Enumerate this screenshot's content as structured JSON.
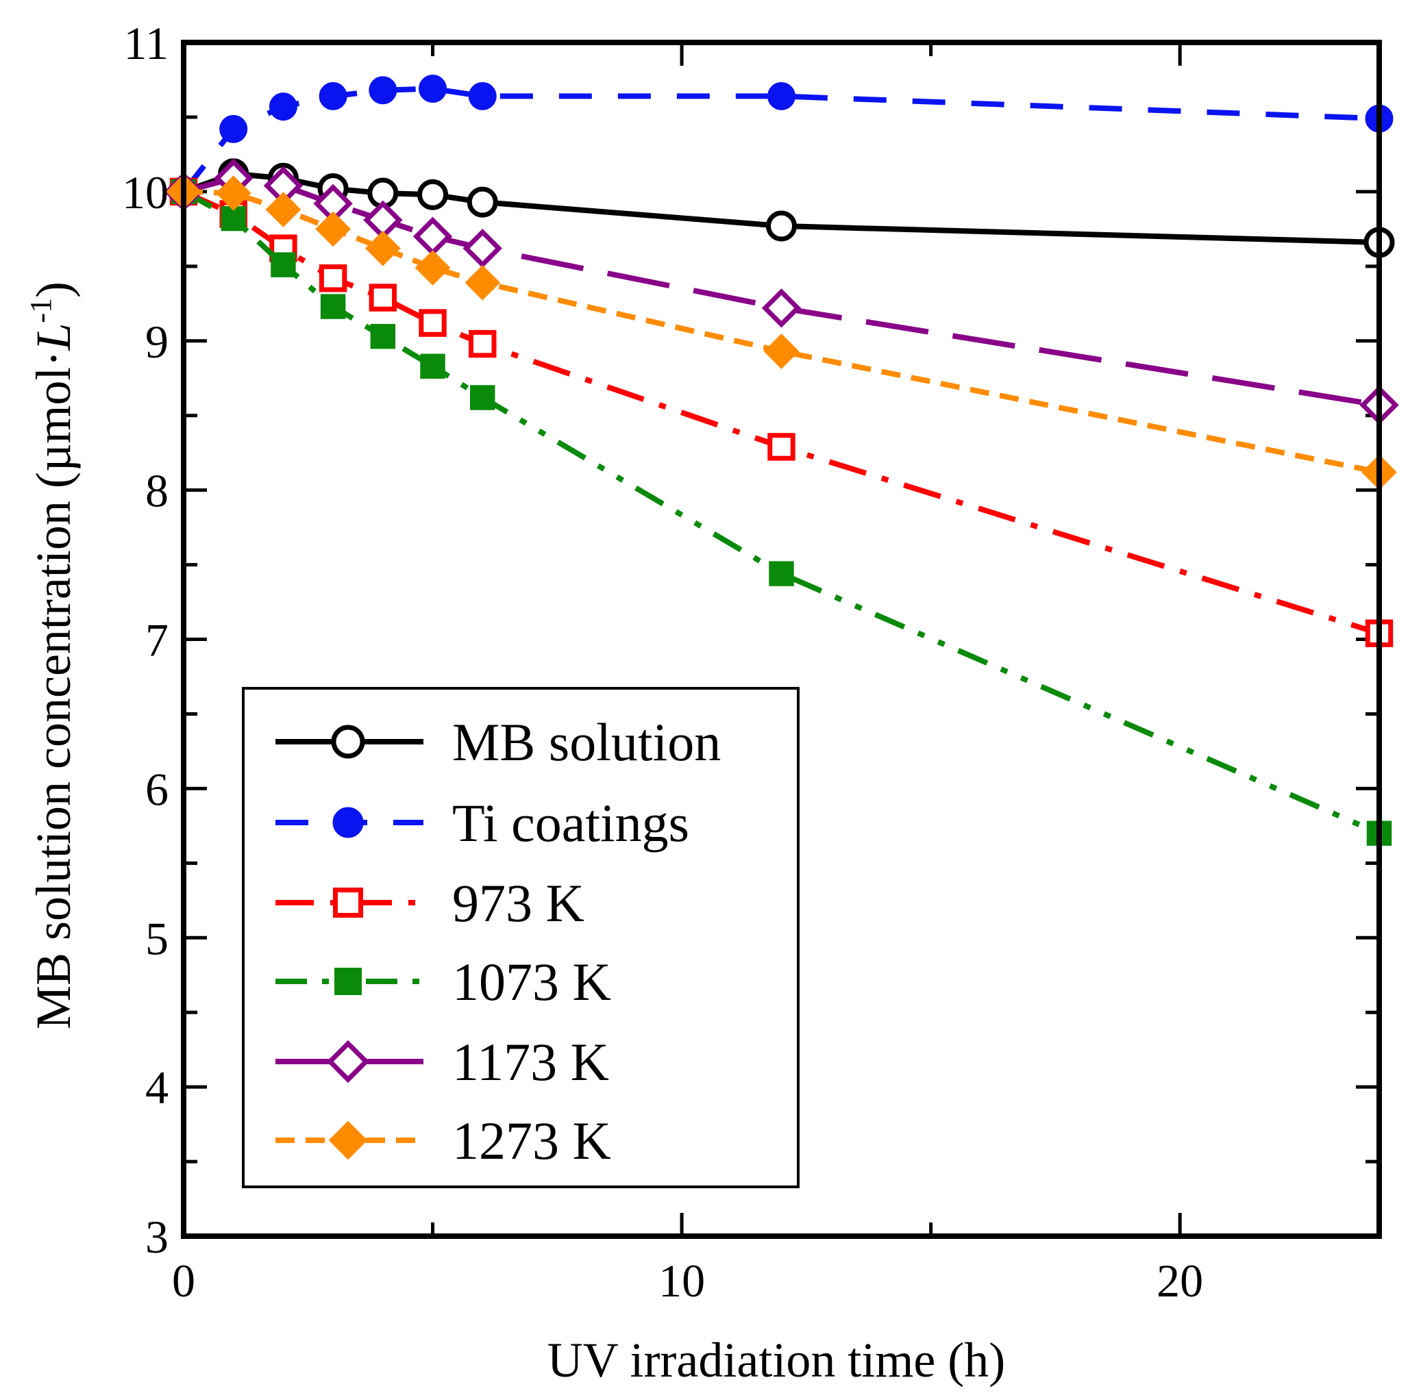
{
  "chart_data": {
    "type": "line",
    "title": "",
    "xlabel": "UV irradiation time (h)",
    "ylabel": "MB solution concentration (µmol·L⁻¹)",
    "ylabel_parts": {
      "prefix": "MB solution concentration (µmol·",
      "unit_letter": "L",
      "exponent": "-1",
      "suffix": ")"
    },
    "xlim": [
      0,
      24
    ],
    "ylim": [
      3,
      11
    ],
    "x_ticks": [
      "0",
      "10",
      "20"
    ],
    "y_ticks": [
      "3",
      "4",
      "5",
      "6",
      "7",
      "8",
      "9",
      "10",
      "11"
    ],
    "x": [
      0,
      1,
      2,
      3,
      4,
      5,
      6,
      12,
      24
    ],
    "legend_position": "lower-left",
    "series": [
      {
        "name": "MB solution",
        "color": "#000000",
        "dash": "solid",
        "marker": "circle",
        "filled": false,
        "values": [
          10.0,
          10.12,
          10.09,
          10.02,
          9.99,
          9.98,
          9.93,
          9.77,
          9.66
        ]
      },
      {
        "name": "Ti coatings",
        "color": "#0a14f0",
        "dash": "dash",
        "marker": "circle",
        "filled": true,
        "values": [
          10.0,
          10.42,
          10.57,
          10.64,
          10.68,
          10.69,
          10.64,
          10.64,
          10.49
        ]
      },
      {
        "name": " 973 K",
        "color": "#ff0000",
        "dash": "dashdot",
        "marker": "square",
        "filled": false,
        "values": [
          10.0,
          9.85,
          9.62,
          9.42,
          9.29,
          9.12,
          8.98,
          8.29,
          7.04
        ]
      },
      {
        "name": "1073 K",
        "color": "#0a8a0a",
        "dash": "dashdotdot",
        "marker": "square",
        "filled": true,
        "values": [
          10.0,
          9.82,
          9.51,
          9.23,
          9.03,
          8.83,
          8.62,
          7.44,
          5.7
        ]
      },
      {
        "name": " 1173 K",
        "color": "#880088",
        "dash": "longdash",
        "marker": "diamond",
        "filled": false,
        "values": [
          10.0,
          10.09,
          10.04,
          9.92,
          9.81,
          9.7,
          9.62,
          9.22,
          8.57
        ]
      },
      {
        "name": " 1273 K",
        "color": "#ff8c00",
        "dash": "shortdash",
        "marker": "diamond",
        "filled": true,
        "values": [
          10.0,
          9.99,
          9.88,
          9.75,
          9.62,
          9.49,
          9.39,
          8.93,
          8.12
        ]
      }
    ]
  }
}
